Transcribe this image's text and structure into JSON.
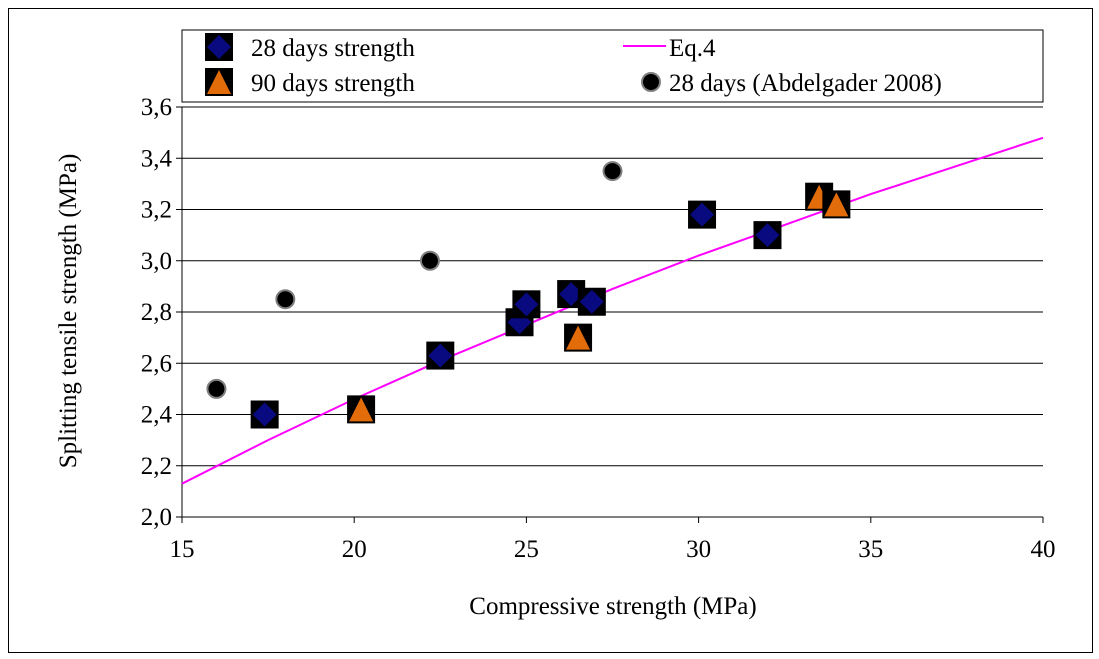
{
  "chart_data": {
    "type": "scatter",
    "xlabel": "Compressive strength (MPa)",
    "ylabel": "Splitting tensile strength (MPa)",
    "xlim": [
      15,
      40
    ],
    "ylim": [
      2.0,
      3.6
    ],
    "x_ticks": [
      "15",
      "20",
      "25",
      "30",
      "35",
      "40"
    ],
    "y_ticks": [
      "2,0",
      "2,2",
      "2,4",
      "2,6",
      "2,8",
      "3,0",
      "3,2",
      "3,4",
      "3,6"
    ],
    "grid": "horizontal",
    "legend_placement": "top",
    "series": [
      {
        "name": "28 days strength",
        "marker": "diamond",
        "color": "#0a0a80",
        "points": [
          {
            "x": 17.4,
            "y": 2.4
          },
          {
            "x": 22.5,
            "y": 2.63
          },
          {
            "x": 24.8,
            "y": 2.76
          },
          {
            "x": 25.0,
            "y": 2.83
          },
          {
            "x": 26.3,
            "y": 2.87
          },
          {
            "x": 26.9,
            "y": 2.84
          },
          {
            "x": 30.1,
            "y": 3.18
          },
          {
            "x": 32.0,
            "y": 3.1
          }
        ]
      },
      {
        "name": "90 days strength",
        "marker": "triangle",
        "color": "#e36c0a",
        "points": [
          {
            "x": 20.2,
            "y": 2.42
          },
          {
            "x": 26.5,
            "y": 2.7
          },
          {
            "x": 33.5,
            "y": 3.25
          },
          {
            "x": 34.0,
            "y": 3.22
          }
        ]
      },
      {
        "name": "28 days (Abdelgader 2008)",
        "marker": "circle",
        "color": "#000000",
        "points": [
          {
            "x": 16.0,
            "y": 2.5
          },
          {
            "x": 18.0,
            "y": 2.85
          },
          {
            "x": 22.2,
            "y": 3.0
          },
          {
            "x": 27.5,
            "y": 3.35
          }
        ]
      },
      {
        "name": "Eq.4",
        "marker": "line",
        "color": "#ff00ff",
        "points": [
          {
            "x": 15.0,
            "y": 2.13
          },
          {
            "x": 17.5,
            "y": 2.3
          },
          {
            "x": 20.0,
            "y": 2.46
          },
          {
            "x": 22.5,
            "y": 2.61
          },
          {
            "x": 25.0,
            "y": 2.75
          },
          {
            "x": 27.5,
            "y": 2.89
          },
          {
            "x": 30.0,
            "y": 3.02
          },
          {
            "x": 32.5,
            "y": 3.14
          },
          {
            "x": 35.0,
            "y": 3.26
          },
          {
            "x": 37.5,
            "y": 3.37
          },
          {
            "x": 40.0,
            "y": 3.48
          }
        ]
      }
    ]
  }
}
